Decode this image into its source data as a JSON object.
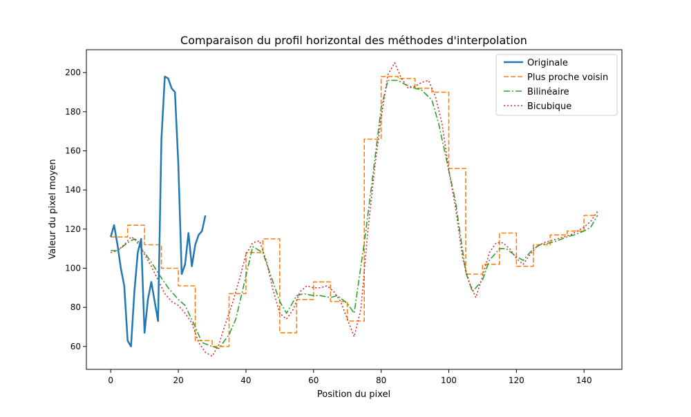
{
  "chart_data": {
    "type": "line",
    "title": "Comparaison du profil horizontal des méthodes d'interpolation",
    "xlabel": "Position du pixel",
    "ylabel": "Valeur du pixel moyen",
    "xlim": [
      -7.2,
      151.2
    ],
    "ylim": [
      48.3,
      211.7
    ],
    "xticks": [
      0,
      20,
      40,
      60,
      80,
      100,
      120,
      140
    ],
    "yticks": [
      60,
      80,
      100,
      120,
      140,
      160,
      180,
      200
    ],
    "grid": false,
    "legend_position": "top-right",
    "series": [
      {
        "name": "Originale",
        "color": "#1f77b4",
        "style": "solid",
        "x": [
          0,
          1,
          2,
          3,
          4,
          5,
          6,
          7,
          8,
          9,
          10,
          11,
          12,
          13,
          14,
          15,
          16,
          17,
          18,
          19,
          20,
          21,
          22,
          23,
          24,
          25,
          26,
          27,
          28
        ],
        "y": [
          116,
          122,
          112,
          100,
          91,
          63,
          60,
          88,
          108,
          115,
          67,
          84,
          93,
          83,
          73,
          166,
          198,
          197,
          192,
          190,
          153,
          97,
          102,
          118,
          101,
          112,
          117,
          119,
          127
        ]
      },
      {
        "name": "Plus proche voisin",
        "color": "#ff7f0e",
        "style": "dashed",
        "x": [
          0,
          1,
          2,
          3,
          4,
          5,
          6,
          7,
          8,
          9,
          10,
          11,
          12,
          13,
          14,
          15,
          16,
          17,
          18,
          19,
          20,
          21,
          22,
          23,
          24,
          25,
          26,
          27,
          28,
          29,
          30,
          31,
          32,
          33,
          34,
          35,
          36,
          37,
          38,
          39,
          40,
          41,
          42,
          43,
          44,
          45,
          46,
          47,
          48,
          49,
          50,
          51,
          52,
          53,
          54,
          55,
          56,
          57,
          58,
          59,
          60,
          61,
          62,
          63,
          64,
          65,
          66,
          67,
          68,
          69,
          70,
          71,
          72,
          73,
          74,
          75,
          76,
          77,
          78,
          79,
          80,
          81,
          82,
          83,
          84,
          85,
          86,
          87,
          88,
          89,
          90,
          91,
          92,
          93,
          94,
          95,
          96,
          97,
          98,
          99,
          100,
          101,
          102,
          103,
          104,
          105,
          106,
          107,
          108,
          109,
          110,
          111,
          112,
          113,
          114,
          115,
          116,
          117,
          118,
          119,
          120,
          121,
          122,
          123,
          124,
          125,
          126,
          127,
          128,
          129,
          130,
          131,
          132,
          133,
          134,
          135,
          136,
          137,
          138,
          139,
          140,
          141,
          142,
          143,
          144
        ],
        "y": [
          116,
          116,
          116,
          116,
          116,
          122,
          122,
          122,
          122,
          122,
          112,
          112,
          112,
          112,
          112,
          100,
          100,
          100,
          100,
          100,
          91,
          91,
          91,
          91,
          91,
          63,
          63,
          63,
          63,
          63,
          60,
          60,
          60,
          60,
          60,
          87,
          87,
          87,
          87,
          87,
          108,
          108,
          108,
          108,
          108,
          115,
          115,
          115,
          115,
          115,
          67,
          67,
          67,
          67,
          67,
          84,
          84,
          84,
          84,
          84,
          93,
          93,
          93,
          93,
          93,
          83,
          83,
          83,
          83,
          83,
          73,
          73,
          73,
          73,
          73,
          166,
          166,
          166,
          166,
          166,
          198,
          198,
          198,
          198,
          198,
          197,
          197,
          197,
          197,
          197,
          192,
          192,
          192,
          192,
          192,
          190,
          190,
          190,
          190,
          190,
          151,
          151,
          151,
          151,
          151,
          97,
          97,
          97,
          97,
          97,
          102,
          102,
          102,
          102,
          102,
          118,
          118,
          118,
          118,
          118,
          101,
          101,
          101,
          101,
          101,
          112,
          112,
          112,
          112,
          112,
          117,
          117,
          117,
          117,
          117,
          119,
          119,
          119,
          119,
          119,
          127,
          127,
          127,
          127,
          127
        ]
      },
      {
        "name": "Bilinéaire",
        "color": "#2ca02c",
        "style": "dashdot",
        "x": [
          0,
          2,
          5,
          7,
          10,
          12,
          15,
          17,
          20,
          22,
          25,
          27,
          30,
          32,
          35,
          37,
          40,
          42,
          45,
          47,
          50,
          52,
          55,
          57,
          60,
          62,
          65,
          67,
          70,
          72,
          75,
          77,
          80,
          82,
          85,
          87,
          90,
          92,
          95,
          97,
          100,
          102,
          105,
          107,
          110,
          112,
          115,
          117,
          120,
          122,
          125,
          127,
          130,
          132,
          135,
          137,
          140,
          142,
          144
        ],
        "y": [
          109,
          109,
          113,
          115,
          108,
          103,
          95,
          90,
          84,
          81,
          70,
          62,
          60,
          59,
          66,
          74,
          96,
          111,
          108,
          98,
          83,
          77,
          86,
          87,
          86,
          86,
          85,
          86,
          82,
          77,
          113,
          140,
          182,
          196,
          196,
          194,
          192,
          191,
          186,
          174,
          150,
          134,
          98,
          88,
          94,
          104,
          110,
          110,
          106,
          104,
          110,
          112,
          113,
          114,
          116,
          117,
          119,
          121,
          127
        ]
      },
      {
        "name": "Bicubique",
        "color": "#d62728",
        "style": "dotted",
        "x": [
          0,
          2,
          4,
          6,
          8,
          10,
          12,
          14,
          16,
          18,
          20,
          22,
          24,
          26,
          28,
          30,
          32,
          34,
          36,
          38,
          40,
          42,
          44,
          46,
          48,
          50,
          52,
          54,
          56,
          58,
          60,
          62,
          64,
          66,
          68,
          70,
          72,
          74,
          76,
          78,
          80,
          82,
          84,
          86,
          88,
          90,
          92,
          94,
          96,
          98,
          100,
          102,
          104,
          106,
          108,
          110,
          112,
          114,
          116,
          118,
          120,
          122,
          124,
          126,
          128,
          130,
          132,
          134,
          136,
          138,
          140,
          142,
          144
        ],
        "y": [
          108,
          109,
          112,
          116,
          114,
          107,
          101,
          94,
          87,
          83,
          81,
          77,
          72,
          62,
          57,
          55,
          61,
          72,
          82,
          94,
          107,
          113,
          114,
          104,
          89,
          77,
          74,
          79,
          88,
          91,
          90,
          90,
          91,
          88,
          83,
          74,
          65,
          79,
          118,
          150,
          177,
          199,
          205,
          197,
          192,
          193,
          195,
          196,
          188,
          174,
          150,
          131,
          106,
          93,
          85,
          96,
          108,
          113,
          113,
          110,
          105,
          102,
          107,
          111,
          113,
          114,
          115,
          116,
          117,
          119,
          121,
          124,
          129
        ]
      }
    ]
  }
}
